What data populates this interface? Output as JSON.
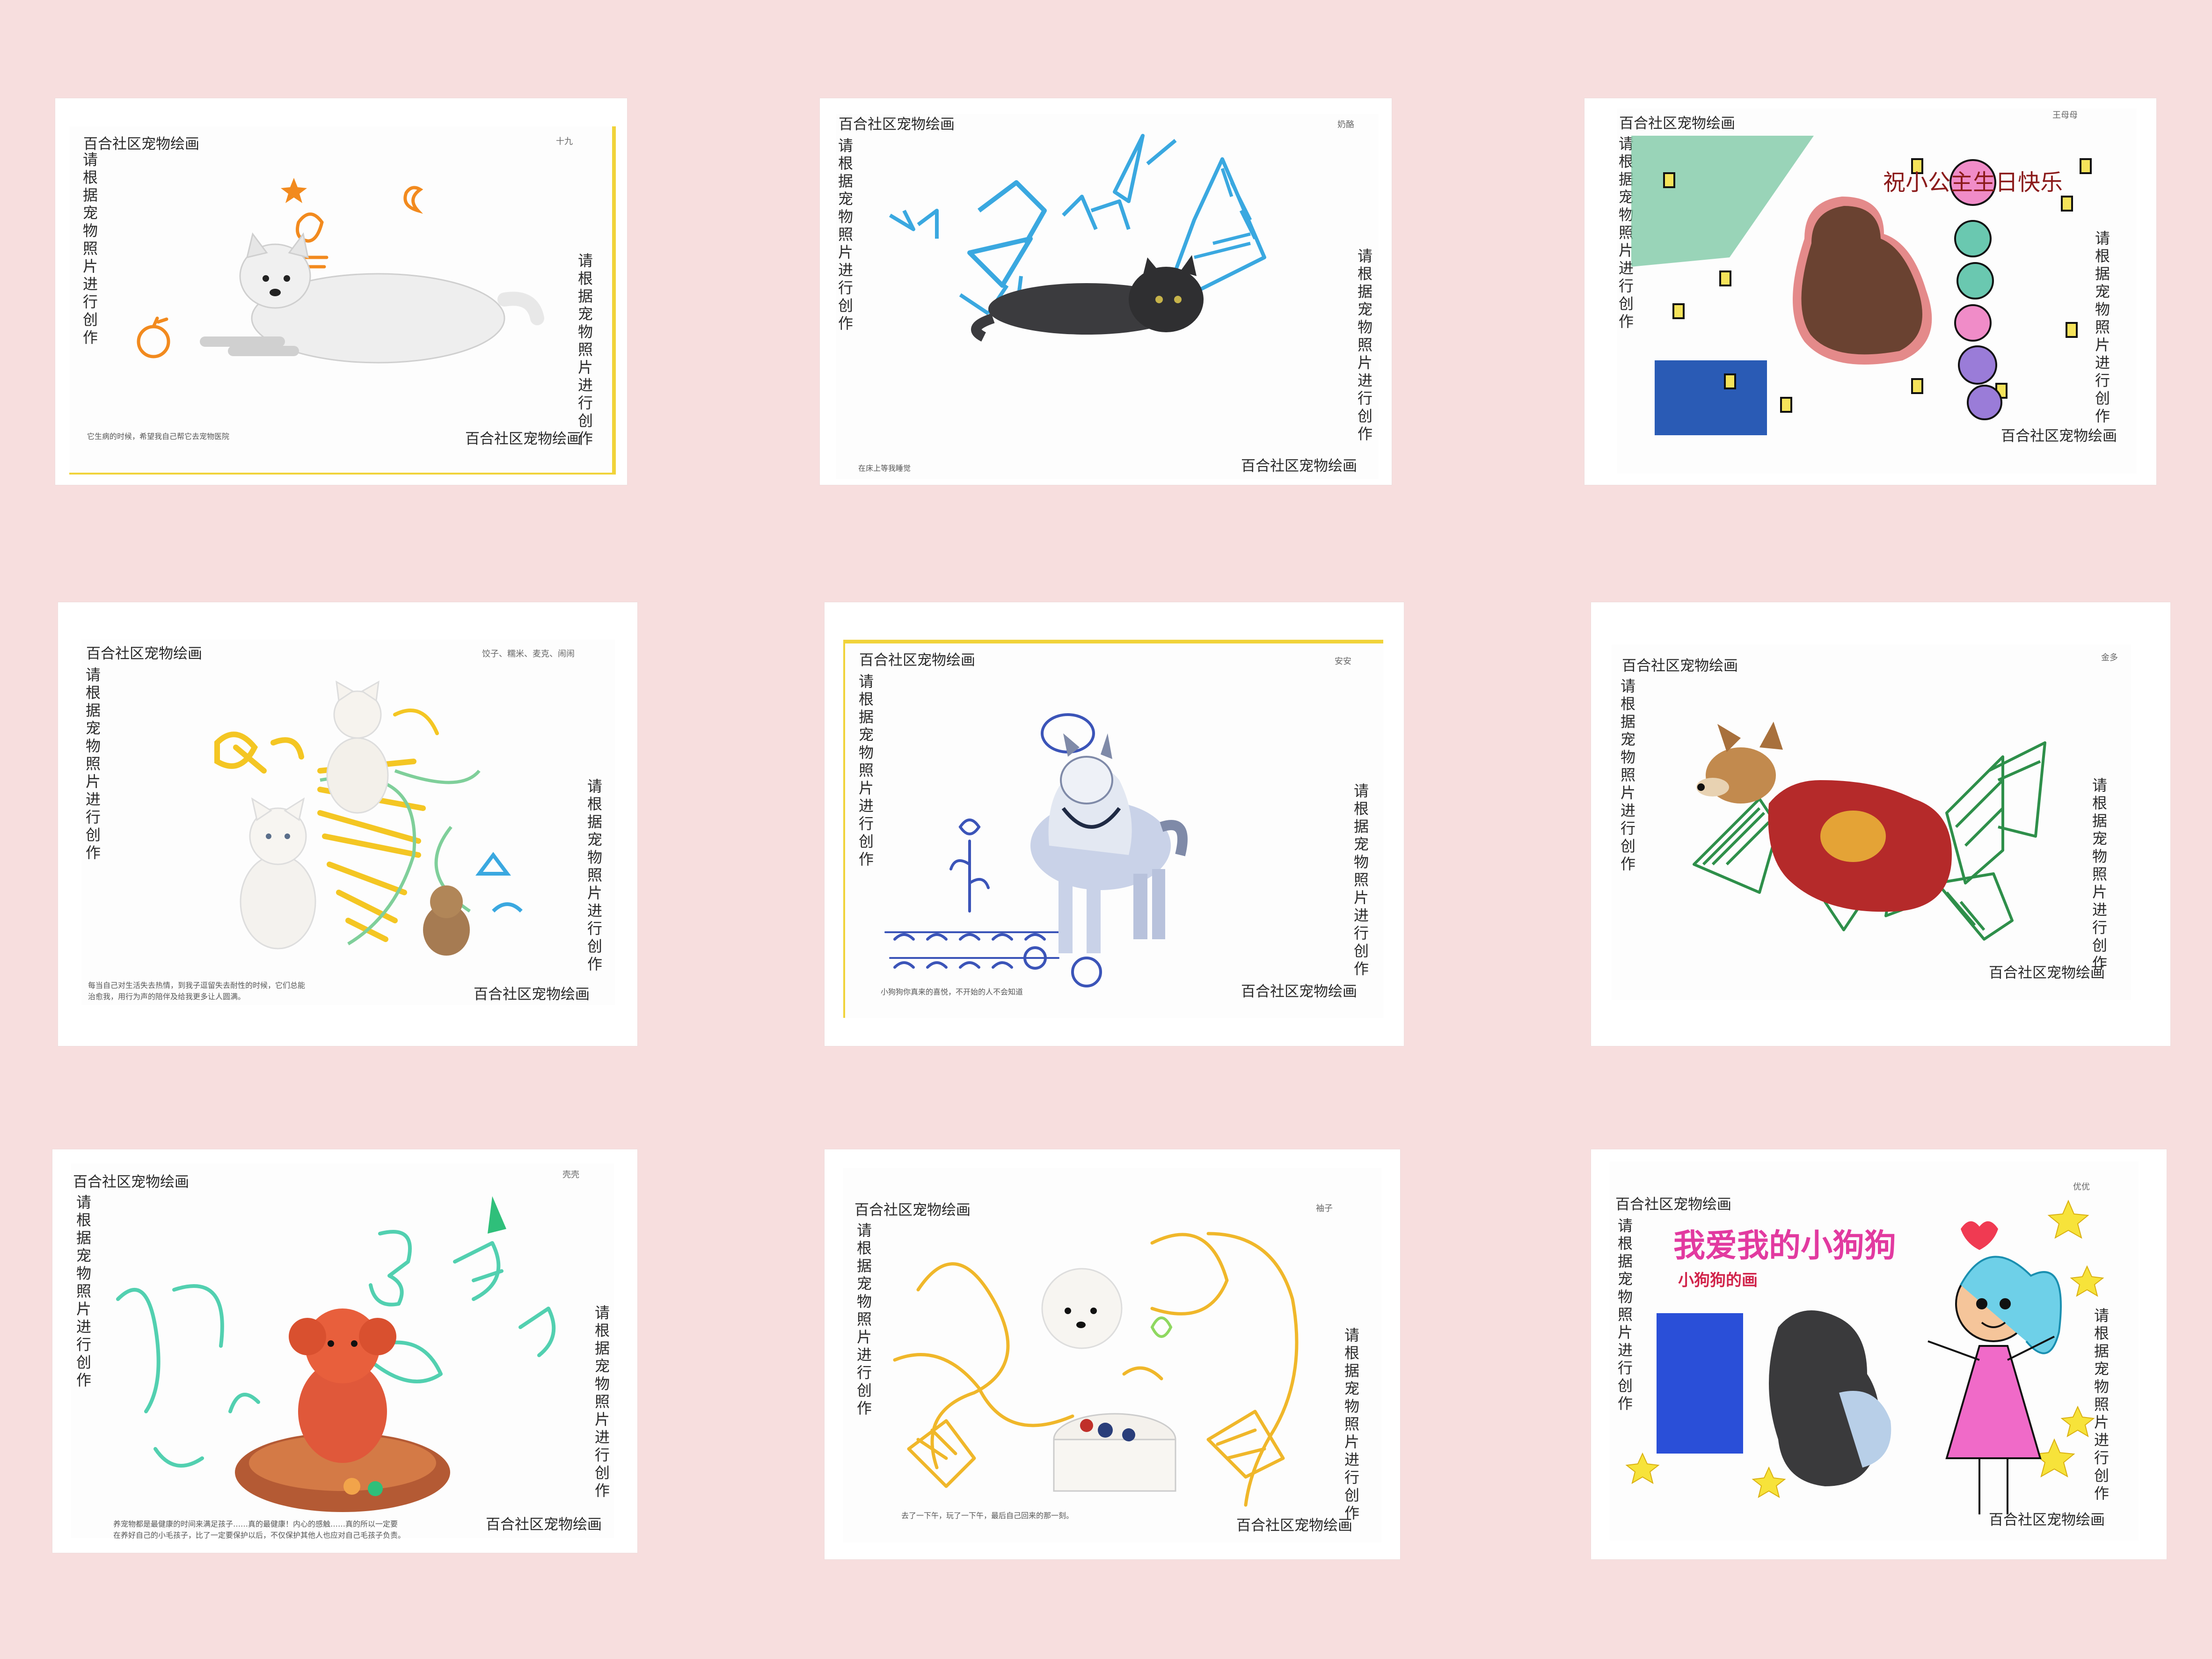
{
  "cards": [
    {
      "title": "百合社区宠物绘画",
      "side_text": "请根据宠物照片进行创作",
      "footer": "百合社区宠物绘画",
      "name": "十九",
      "caption": "它生病的时候，希望我自己帮它去宠物医院"
    },
    {
      "title": "百合社区宠物绘画",
      "side_text": "请根据宠物照片进行创作",
      "footer": "百合社区宠物绘画",
      "name": "奶酪",
      "caption": "在床上等我睡觉"
    },
    {
      "title": "百合社区宠物绘画",
      "side_text": "请根据宠物照片进行创作",
      "footer": "百合社区宠物绘画",
      "name": "王母母",
      "drawn_text": "祝小公主生日快乐",
      "caption": ""
    },
    {
      "title": "百合社区宠物绘画",
      "side_text": "请根据宠物照片进行创作",
      "footer": "百合社区宠物绘画",
      "name": "饺子、糯米、麦克、闹闹",
      "caption_lines": [
        "每当自己对生活失去热情，到我子逗留失去耐性的时候，它们总能",
        "治愈我，用行为声的陪伴及给我更多让人圆满。"
      ]
    },
    {
      "title": "百合社区宠物绘画",
      "side_text": "请根据宠物照片进行创作",
      "footer": "百合社区宠物绘画",
      "name": "安安",
      "caption": "小狗狗你真来的喜悦，不开始的人不会知道"
    },
    {
      "title": "百合社区宠物绘画",
      "side_text": "请根据宠物照片进行创作",
      "footer": "百合社区宠物绘画",
      "name": "金多",
      "caption": ""
    },
    {
      "title": "百合社区宠物绘画",
      "side_text": "请根据宠物照片进行创作",
      "footer": "百合社区宠物绘画",
      "name": "壳壳",
      "caption_lines": [
        "养宠物都是最健康的时间来满足孩子……真的最健康！内心的感触……真的所以一定要",
        "在养好自己的小毛孩子，比了一定要保护以后，不仅保护其他人也应对自己毛孩子负责。"
      ]
    },
    {
      "title": "百合社区宠物绘画",
      "side_text": "请根据宠物照片进行创作",
      "footer": "百合社区宠物绘画",
      "name": "袖子",
      "caption": "去了一下午，玩了一下午，最后自己回来的那一刻。"
    },
    {
      "title": "百合社区宠物绘画",
      "side_text": "请根据宠物照片进行创作",
      "footer": "百合社区宠物绘画",
      "name": "优优",
      "drawn_text": "我爱我的小狗狗",
      "drawn_sub": "小狗狗的画",
      "caption": ""
    }
  ],
  "colors": {
    "background": "#f7dede",
    "card": "#ffffff"
  }
}
